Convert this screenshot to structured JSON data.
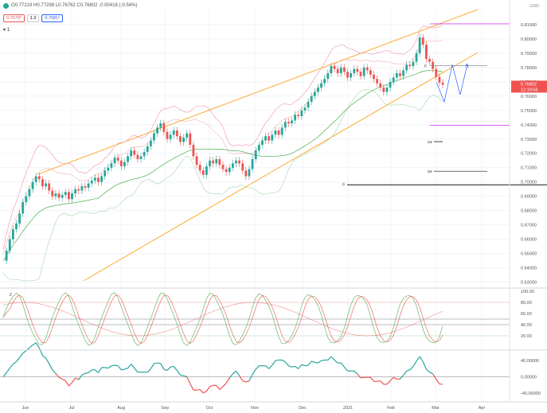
{
  "header": {
    "ohlc_text": "O0.77219  H0.77298  L0.76762  C0.76802  -0.00416 (-0.54%)",
    "price_badge_1": "0.7679²",
    "price_badge_gap": "1.3",
    "price_badge_2": "0.7681²",
    "timeframe": "1",
    "currency": "USD",
    "current_price": "0.76802",
    "countdown": "12:19:58"
  },
  "chart_data": [
    {
      "type": "candlestick",
      "x_ticks": [
        "Jun",
        "Jul",
        "Aug",
        "Sep",
        "Oct",
        "Nov",
        "Dec",
        "2021",
        "Feb",
        "Mar",
        "Apr"
      ],
      "y_ticks": [
        "0.81000",
        "0.80000",
        "0.79000",
        "0.78000",
        "0.77000",
        "0.76000",
        "0.75000",
        "0.74000",
        "0.73000",
        "0.72000",
        "0.71000",
        "0.70000",
        "0.69000",
        "0.68000",
        "0.67000",
        "0.66000",
        "0.65000",
        "0.64000",
        "0.63000"
      ],
      "ylim": [
        0.627,
        0.8205
      ],
      "close_series": [
        0.645,
        0.652,
        0.66,
        0.667,
        0.671,
        0.678,
        0.686,
        0.69,
        0.695,
        0.7,
        0.704,
        0.702,
        0.697,
        0.699,
        0.694,
        0.69,
        0.692,
        0.689,
        0.691,
        0.693,
        0.688,
        0.692,
        0.695,
        0.694,
        0.697,
        0.696,
        0.699,
        0.701,
        0.703,
        0.7,
        0.704,
        0.708,
        0.71,
        0.713,
        0.717,
        0.715,
        0.711,
        0.714,
        0.718,
        0.722,
        0.719,
        0.716,
        0.718,
        0.721,
        0.725,
        0.729,
        0.734,
        0.738,
        0.741,
        0.735,
        0.73,
        0.733,
        0.736,
        0.732,
        0.728,
        0.731,
        0.734,
        0.726,
        0.718,
        0.712,
        0.708,
        0.705,
        0.711,
        0.715,
        0.713,
        0.716,
        0.712,
        0.709,
        0.707,
        0.71,
        0.713,
        0.715,
        0.713,
        0.708,
        0.704,
        0.709,
        0.716,
        0.722,
        0.726,
        0.729,
        0.732,
        0.729,
        0.733,
        0.736,
        0.733,
        0.738,
        0.742,
        0.741,
        0.743,
        0.747,
        0.746,
        0.75,
        0.752,
        0.756,
        0.76,
        0.763,
        0.766,
        0.769,
        0.772,
        0.776,
        0.781,
        0.779,
        0.776,
        0.78,
        0.777,
        0.773,
        0.776,
        0.779,
        0.777,
        0.774,
        0.78,
        0.778,
        0.775,
        0.772,
        0.769,
        0.766,
        0.763,
        0.766,
        0.77,
        0.773,
        0.776,
        0.774,
        0.778,
        0.782,
        0.781,
        0.784,
        0.79,
        0.801,
        0.796,
        0.786,
        0.784,
        0.779,
        0.7735,
        0.7695,
        0.768
      ],
      "pivots": {
        "R1": "0.7762",
        "P": "0.7812",
        "S1": "0.7670",
        "S3": "0.7282",
        "S4": "0.7075",
        "P_yearly": "0.6980"
      },
      "labels": [
        "P",
        "S3",
        "S4",
        "P"
      ]
    },
    {
      "type": "line",
      "name": "Stochastic RSI",
      "indicator_label": "2",
      "y_ticks": [
        "100.00",
        "80.00",
        "60.00",
        "40.00",
        "20.00"
      ],
      "ylim": [
        0,
        100
      ],
      "levels": [
        80,
        50,
        40,
        20
      ]
    },
    {
      "type": "line",
      "name": "Momentum",
      "y_ticks": [
        "40.00000",
        "0.00000",
        "-40.00000"
      ],
      "ylim": [
        -55,
        55
      ]
    }
  ],
  "colors": {
    "up": "#26a69a",
    "down": "#ef5350",
    "channel": "#ff9800",
    "pivot_r": "#d500f9",
    "projection": "#2962ff",
    "sma": "#4caf50",
    "stoch_k": "#4caf50",
    "stoch_d": "#ef5350"
  }
}
